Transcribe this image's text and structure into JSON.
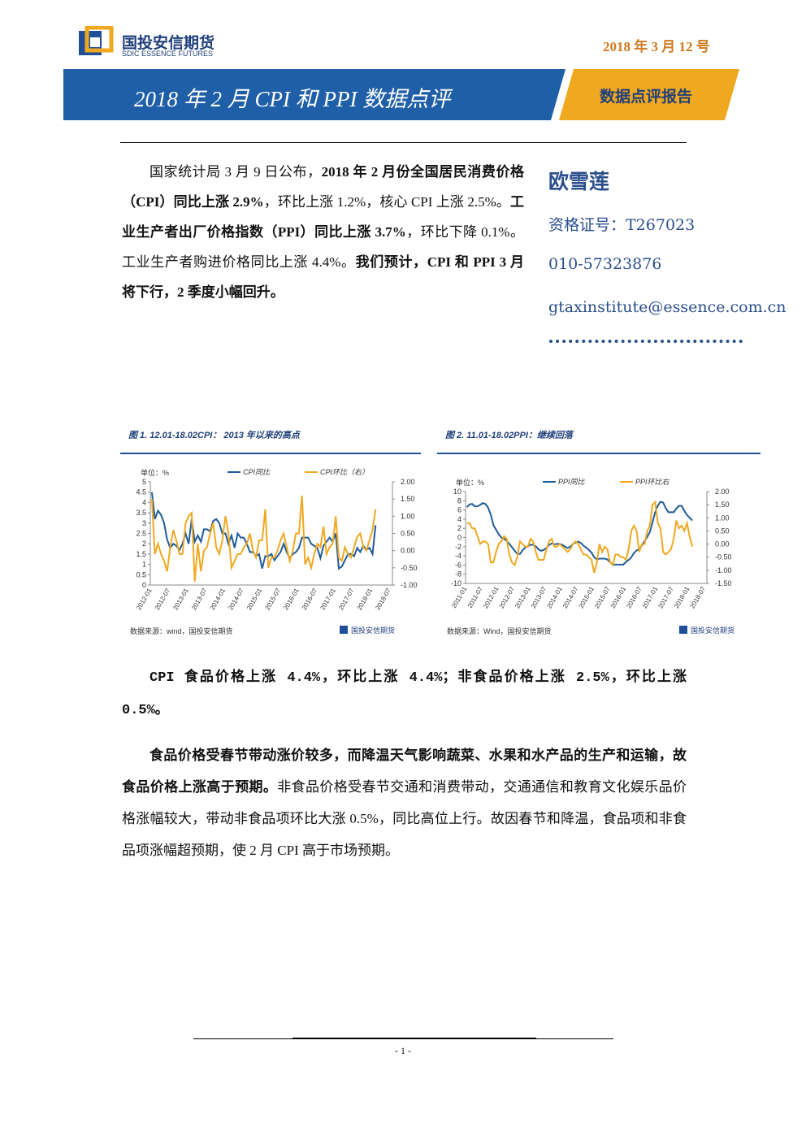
{
  "header": {
    "logo_cn": "国投安信期货",
    "logo_en": "SDIC ESSENCE FUTURES",
    "date": "2018 年 3 月 12 号",
    "title": "2018 年 2 月 CPI 和 PPI 数据点评",
    "tag": "数据点评报告"
  },
  "summary": {
    "runs": [
      {
        "text": "国家统计局 3 月 9 日公布，",
        "bold": false
      },
      {
        "text": "2018 年 2 月份全国居民消费价格（CPI）同比上涨 2.9%",
        "bold": true
      },
      {
        "text": "，环比上涨 1.2%，核心 CPI 上涨 2.5%。",
        "bold": false
      },
      {
        "text": "工业生产者出厂价格指数（PPI）同比上涨 3.7%",
        "bold": true
      },
      {
        "text": "，环比下降 0.1%。工业生产者购进价格同比上涨 4.4%。",
        "bold": false
      },
      {
        "text": "我们预计，CPI 和 PPI 3 月将下行，2 季度小幅回升。",
        "bold": true
      }
    ]
  },
  "author": {
    "name": "欧雪莲",
    "cert": "资格证号：T267023",
    "phone": "010-57323876",
    "email": "gtaxinstitute@essence.com.cn"
  },
  "body": [
    {
      "runs": [
        {
          "text": "CPI 食品价格上涨 4.4%，环比上涨 4.4%；非食品价格上涨 2.5%，环比上涨 0.5%。",
          "bold": true
        }
      ]
    },
    {
      "runs": [
        {
          "text": "食品价格受春节带动涨价较多，而降温天气影响蔬菜、水果和水产品的生产和运输，故食品价格上涨高于预期。",
          "bold": true
        },
        {
          "text": "非食品价格受春节交通和消费带动，交通通信和教育文化娱乐品价格涨幅较大，带动非食品项环比大涨 0.5%，同比高位上行。故因春节和降温，食品项和非食品项涨幅超预期，使 2 月 CPI 高于市场预期。",
          "bold": false
        }
      ]
    }
  ],
  "footer": {
    "page": "- 1 -"
  },
  "chart_data": [
    {
      "type": "line",
      "title": "图 1. 12.01-18.02CPI： 2013 年以来的高点",
      "unit": "单位：%",
      "source": "数据来源：wind，国投安信期货",
      "logo": "国投安信期货",
      "categories": [
        "2012-01",
        null,
        null,
        null,
        null,
        null,
        "2012-07",
        null,
        null,
        null,
        null,
        null,
        "2013-01",
        null,
        null,
        null,
        null,
        null,
        "2013-07",
        null,
        null,
        null,
        null,
        null,
        "2014-01",
        null,
        null,
        null,
        null,
        null,
        "2014-07",
        null,
        null,
        null,
        null,
        null,
        "2015-01",
        null,
        null,
        null,
        null,
        null,
        "2015-07",
        null,
        null,
        null,
        null,
        null,
        "2016-01",
        null,
        null,
        null,
        null,
        null,
        "2016-07",
        null,
        null,
        null,
        null,
        null,
        "2017-01",
        null,
        null,
        null,
        null,
        null,
        "2017-07",
        null,
        null,
        null,
        null,
        null,
        "2018-01",
        null,
        null,
        null,
        null,
        null,
        "2018-07"
      ],
      "ylim": [
        0,
        5
      ],
      "yticks": [
        0,
        0.5,
        1,
        1.5,
        2,
        2.5,
        3,
        3.5,
        4,
        4.5,
        5
      ],
      "y2lim": [
        -1,
        2
      ],
      "y2ticks": [
        {
          "value": -1,
          "label": "-1.00"
        },
        {
          "value": -0.5,
          "label": "-0.50"
        },
        {
          "value": 0,
          "label": "0.00"
        },
        {
          "value": 0.5,
          "label": "0.50"
        },
        {
          "value": 1,
          "label": "1.00"
        },
        {
          "value": 1.5,
          "label": "1.50"
        },
        {
          "value": 2,
          "label": "2.00"
        }
      ],
      "series": [
        {
          "name": "CPI同比",
          "color": "#1f5c99",
          "values": [
            4.5,
            3.2,
            3.6,
            3.4,
            3.0,
            2.2,
            1.8,
            2.0,
            1.9,
            1.7,
            2.0,
            2.5,
            2.0,
            3.2,
            2.1,
            2.4,
            2.1,
            2.7,
            2.7,
            2.6,
            3.1,
            3.2,
            3.0,
            2.5,
            2.5,
            2.0,
            2.4,
            1.8,
            2.5,
            2.3,
            2.3,
            2.0,
            1.6,
            1.6,
            1.4,
            1.5,
            0.8,
            1.4,
            1.4,
            1.5,
            1.2,
            1.4,
            1.6,
            2.0,
            1.6,
            1.3,
            1.5,
            1.6,
            1.8,
            2.3,
            2.3,
            2.3,
            2.0,
            1.9,
            1.8,
            1.3,
            1.9,
            2.1,
            2.3,
            2.1,
            2.5,
            0.8,
            0.9,
            1.2,
            1.5,
            1.5,
            1.4,
            1.8,
            1.6,
            1.9,
            1.7,
            1.8,
            1.5,
            2.9,
            null,
            null,
            null,
            null,
            null
          ]
        },
        {
          "name": "CPI环比（右）",
          "color": "#f0a820",
          "axis": "y2",
          "values": [
            1.5,
            -0.1,
            0.2,
            -0.1,
            -0.3,
            -0.6,
            0.1,
            0.6,
            0.3,
            -0.1,
            -0.1,
            0.8,
            1.0,
            1.1,
            -0.9,
            0.2,
            -0.6,
            0.0,
            0.1,
            0.5,
            0.8,
            0.1,
            -0.1,
            0.3,
            1.0,
            0.5,
            -0.5,
            -0.3,
            -0.1,
            -0.1,
            0.1,
            0.2,
            0.5,
            0.0,
            -0.2,
            0.3,
            0.3,
            1.2,
            -0.5,
            -0.2,
            -0.2,
            0.0,
            0.3,
            0.5,
            0.1,
            -0.3,
            0.0,
            0.5,
            0.5,
            1.6,
            -0.4,
            -0.2,
            -0.5,
            -0.1,
            0.2,
            0.1,
            0.7,
            -0.1,
            0.1,
            0.2,
            1.0,
            -0.2,
            -0.3,
            0.1,
            -0.1,
            -0.2,
            0.1,
            0.4,
            0.5,
            0.1,
            0.0,
            0.3,
            0.6,
            1.2,
            null,
            null,
            null,
            null,
            null
          ]
        }
      ]
    },
    {
      "type": "line",
      "title": "图 2. 11.01-18.02PPI：继续回落",
      "unit": "单位：%",
      "source": "数据来源：Wind，国投安信期货",
      "logo": "国投安信期货",
      "categories": [
        "2011-01",
        null,
        null,
        null,
        null,
        null,
        "2011-07",
        null,
        null,
        null,
        null,
        null,
        "2012-01",
        null,
        null,
        null,
        null,
        null,
        "2012-07",
        null,
        null,
        null,
        null,
        null,
        "2013-01",
        null,
        null,
        null,
        null,
        null,
        "2013-07",
        null,
        null,
        null,
        null,
        null,
        "2014-01",
        null,
        null,
        null,
        null,
        null,
        "2014-07",
        null,
        null,
        null,
        null,
        null,
        "2015-01",
        null,
        null,
        null,
        null,
        null,
        "2015-07",
        null,
        null,
        null,
        null,
        null,
        "2016-01",
        null,
        null,
        null,
        null,
        null,
        "2016-07",
        null,
        null,
        null,
        null,
        null,
        "2017-01",
        null,
        null,
        null,
        null,
        null,
        "2017-07",
        null,
        null,
        null,
        null,
        null,
        "2018-01",
        null,
        null,
        null,
        null,
        null,
        "2018-07"
      ],
      "ylim": [
        -10,
        10
      ],
      "yticks": [
        -10,
        -8,
        -6,
        -4,
        -2,
        0,
        2,
        4,
        6,
        8,
        10
      ],
      "y2lim": [
        -1.5,
        2
      ],
      "y2ticks": [
        {
          "value": -1.5,
          "label": "-1.50"
        },
        {
          "value": -1,
          "label": "-1.00"
        },
        {
          "value": -0.5,
          "label": "-0.50"
        },
        {
          "value": 0,
          "label": "0.00"
        },
        {
          "value": 0.5,
          "label": "0.50"
        },
        {
          "value": 1,
          "label": "1.00"
        },
        {
          "value": 1.5,
          "label": "1.50"
        },
        {
          "value": 2,
          "label": "2.00"
        }
      ],
      "series": [
        {
          "name": "PPI同比",
          "color": "#1f5c99",
          "values": [
            6.6,
            7.2,
            7.3,
            6.8,
            6.8,
            7.1,
            7.5,
            7.3,
            6.5,
            5.0,
            2.7,
            1.7,
            0.7,
            0.0,
            -0.3,
            -0.7,
            -1.4,
            -2.1,
            -2.9,
            -3.5,
            -3.6,
            -2.8,
            -2.2,
            -1.9,
            -1.6,
            -1.6,
            -1.9,
            -2.6,
            -2.9,
            -2.7,
            -2.3,
            -1.6,
            -1.3,
            -1.5,
            -1.4,
            -1.4,
            -1.6,
            -2.0,
            -2.3,
            -2.0,
            -1.4,
            -1.1,
            -0.9,
            -1.2,
            -1.8,
            -2.2,
            -2.7,
            -3.3,
            -4.3,
            -4.8,
            -4.6,
            -4.6,
            -4.6,
            -4.8,
            -5.4,
            -5.9,
            -5.9,
            -5.9,
            -5.9,
            -5.9,
            -5.3,
            -4.9,
            -4.3,
            -3.4,
            -2.8,
            -2.6,
            -1.7,
            -0.8,
            0.1,
            1.2,
            3.3,
            5.5,
            6.9,
            7.8,
            7.6,
            6.4,
            5.5,
            5.5,
            5.5,
            6.3,
            6.9,
            6.9,
            5.8,
            4.9,
            4.3,
            3.7,
            null,
            null,
            null,
            null,
            null
          ]
        },
        {
          "name": "PPI环比右",
          "color": "#f0a820",
          "axis": "y2",
          "values": [
            0.8,
            0.8,
            0.6,
            0.6,
            0.3,
            0.0,
            0.1,
            0.1,
            0.0,
            -0.7,
            -0.7,
            -0.3,
            0.0,
            0.1,
            0.3,
            0.2,
            -0.4,
            -0.7,
            -0.8,
            -0.5,
            0.1,
            0.0,
            -0.1,
            -0.1,
            0.2,
            0.1,
            -0.3,
            -0.6,
            -0.6,
            -0.6,
            -0.2,
            0.1,
            0.2,
            -0.1,
            -0.1,
            0.0,
            -0.1,
            -0.2,
            -0.3,
            -0.2,
            0.0,
            0.1,
            0.0,
            -0.2,
            -0.4,
            -0.4,
            -0.5,
            -0.6,
            -1.1,
            -0.7,
            0.0,
            -0.3,
            -0.1,
            -0.2,
            -0.7,
            -0.8,
            -0.4,
            -0.4,
            -0.5,
            -0.5,
            -0.6,
            -0.2,
            0.5,
            0.7,
            0.5,
            -0.3,
            0.0,
            0.0,
            0.5,
            0.7,
            1.5,
            1.6,
            0.8,
            0.6,
            -0.3,
            -0.4,
            -0.3,
            -0.2,
            0.2,
            0.9,
            0.6,
            0.7,
            0.5,
            0.8,
            0.3,
            -0.1,
            null,
            null,
            null,
            null,
            null
          ]
        }
      ]
    }
  ]
}
